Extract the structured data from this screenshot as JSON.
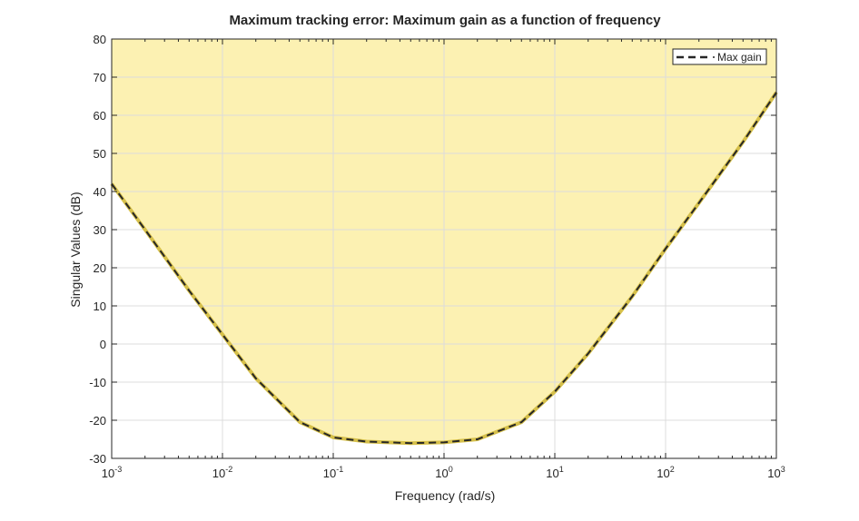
{
  "chart_data": {
    "type": "line",
    "title": "Maximum tracking error: Maximum gain as a function of frequency",
    "xlabel": "Frequency (rad/s)",
    "ylabel": "Singular Values (dB)",
    "xscale": "log",
    "xlim": [
      0.001,
      1000
    ],
    "ylim": [
      -30,
      80
    ],
    "x_ticks": [
      {
        "base": "10",
        "exp": "-3"
      },
      {
        "base": "10",
        "exp": "-2"
      },
      {
        "base": "10",
        "exp": "-1"
      },
      {
        "base": "10",
        "exp": "0"
      },
      {
        "base": "10",
        "exp": "1"
      },
      {
        "base": "10",
        "exp": "2"
      },
      {
        "base": "10",
        "exp": "3"
      }
    ],
    "y_ticks": [
      "-30",
      "-20",
      "-10",
      "0",
      "10",
      "20",
      "30",
      "40",
      "50",
      "60",
      "70",
      "80"
    ],
    "grid": true,
    "legend": {
      "position": "top-right",
      "entries": [
        "Max gain"
      ]
    },
    "series": [
      {
        "name": "Max gain",
        "style": "dashed",
        "x": [
          0.001,
          0.002,
          0.005,
          0.01,
          0.02,
          0.05,
          0.1,
          0.2,
          0.5,
          1,
          2,
          5,
          10,
          20,
          50,
          100,
          200,
          500,
          1000
        ],
        "values": [
          42,
          30,
          14,
          2.5,
          -9,
          -20.5,
          -24.5,
          -25.6,
          -26,
          -25.8,
          -25,
          -20.5,
          -12.5,
          -2.5,
          12.5,
          25,
          37,
          53,
          66
        ]
      }
    ],
    "shaded_region": "above max gain curve (exceedance region)",
    "colors": {
      "fill": "#FCF1B2",
      "fill_edge": "#D6C04A",
      "line": "#262626",
      "grid": "#DCDCDC",
      "axis": "#262626"
    }
  }
}
